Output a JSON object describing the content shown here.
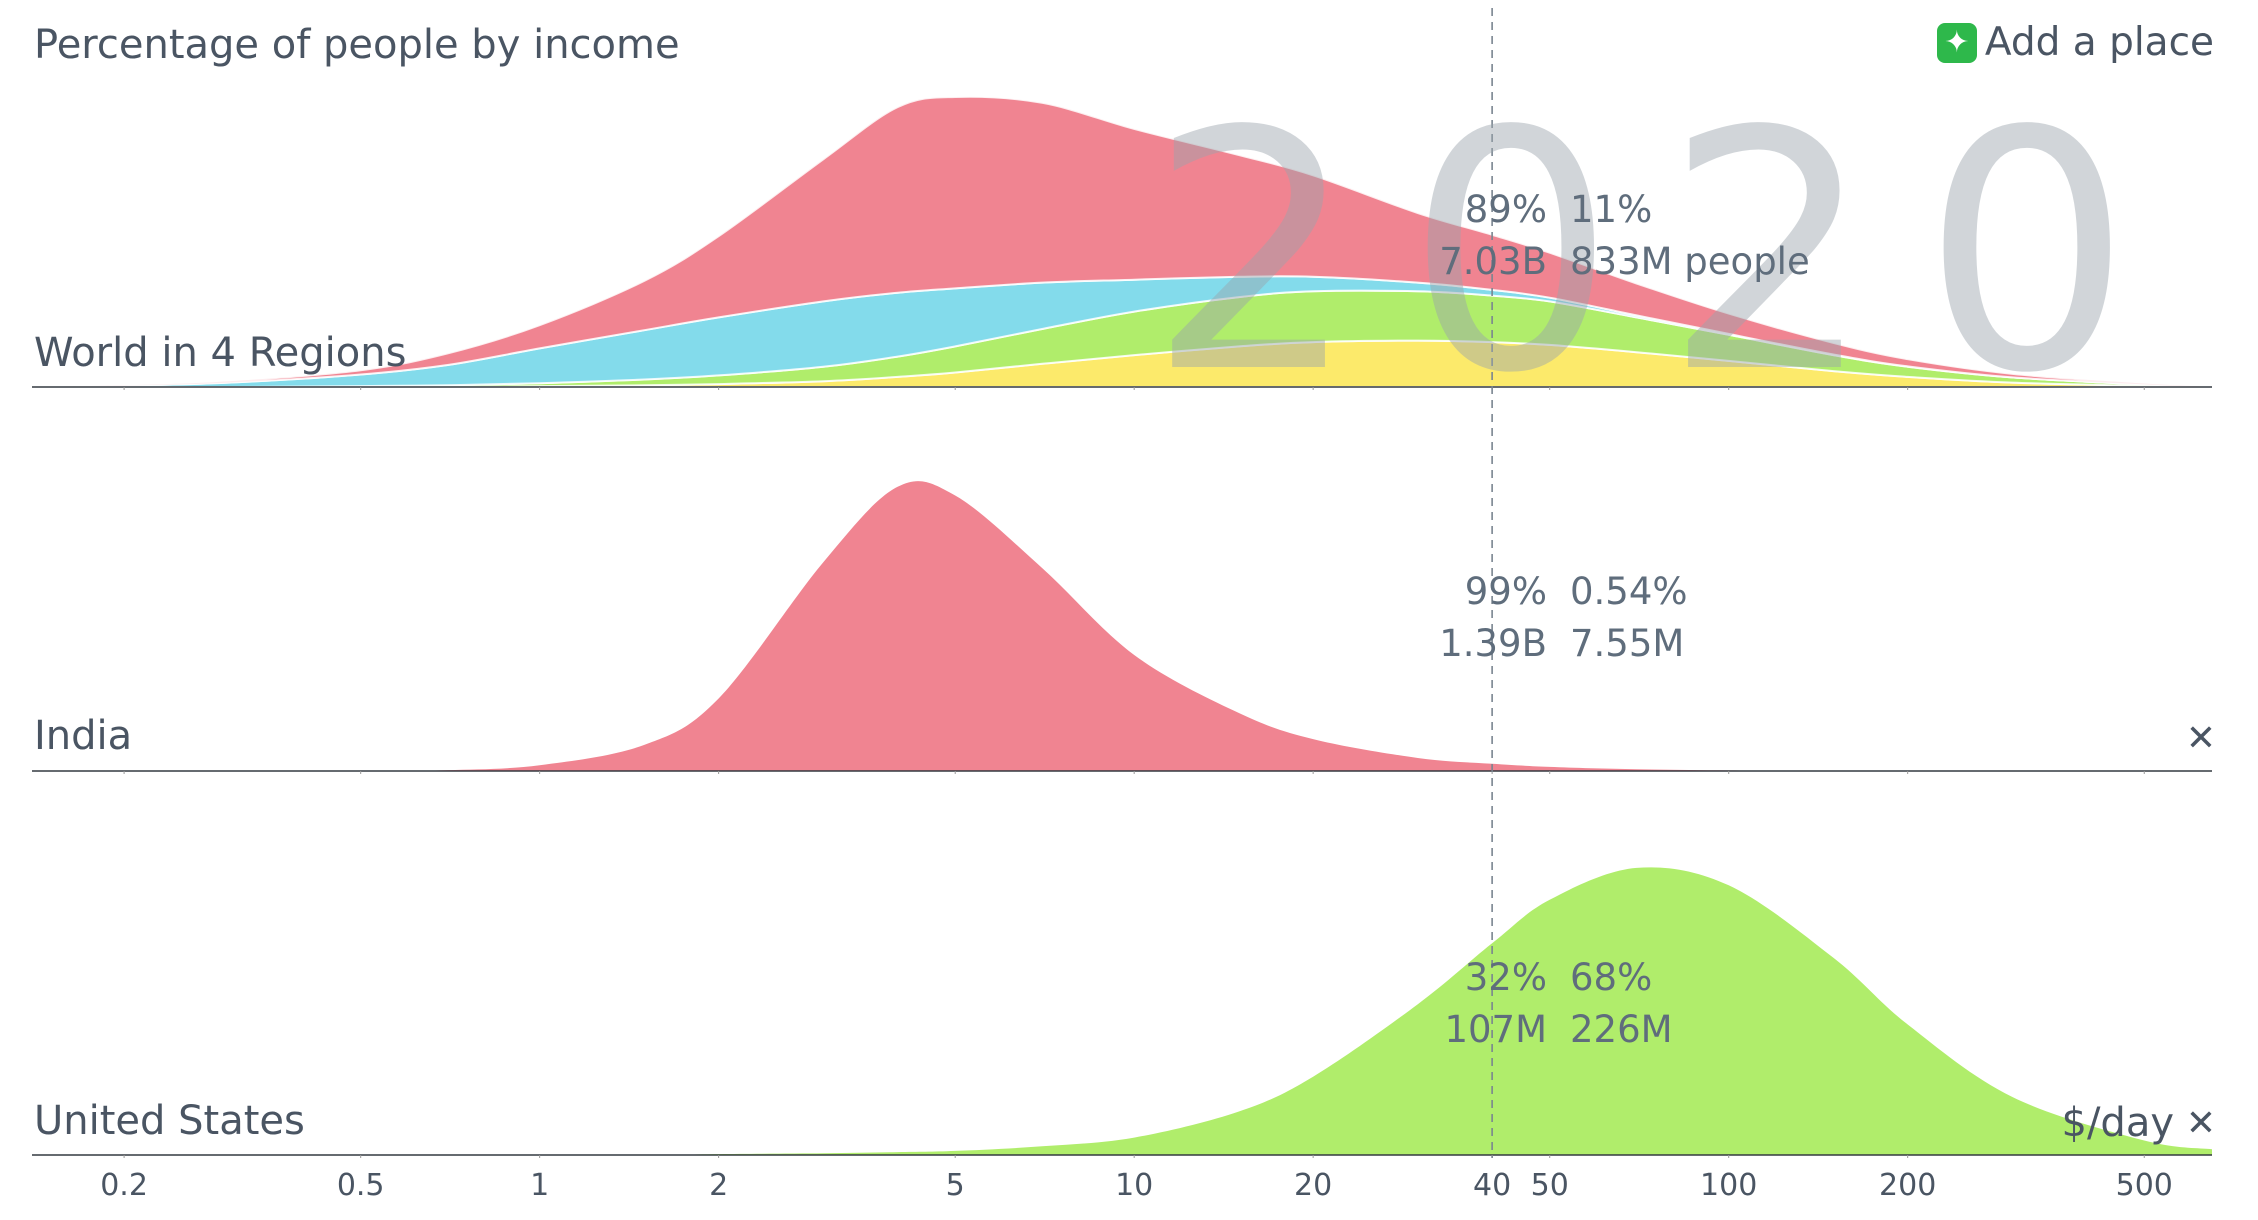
{
  "header": {
    "title": "Percentage of people by income",
    "add_place_label": "Add a place",
    "add_place_icon": "sparkle-icon"
  },
  "year_label": "2020",
  "unit_label": "$/day",
  "threshold": 40,
  "x_ticks": [
    {
      "value": 0.2,
      "label": "0.2"
    },
    {
      "value": 0.5,
      "label": "0.5"
    },
    {
      "value": 1,
      "label": "1"
    },
    {
      "value": 2,
      "label": "2"
    },
    {
      "value": 5,
      "label": "5"
    },
    {
      "value": 10,
      "label": "10"
    },
    {
      "value": 20,
      "label": "20"
    },
    {
      "value": 40,
      "label": "40"
    },
    {
      "value": 50,
      "label": "50"
    },
    {
      "value": 100,
      "label": "100"
    },
    {
      "value": 200,
      "label": "200"
    },
    {
      "value": 500,
      "label": "500"
    }
  ],
  "colors": {
    "red": "#f08491",
    "blue": "#83dbeb",
    "green": "#b0ed6b",
    "yellow": "#fcea6b",
    "text": "#4a5563"
  },
  "panels": [
    {
      "label": "World in 4 Regions",
      "closable": false,
      "stats": {
        "below_pct": "89%",
        "above_pct": "11%",
        "below_count": "7.03B",
        "above_count": "833M people"
      }
    },
    {
      "label": "India",
      "closable": true,
      "stats": {
        "below_pct": "99%",
        "above_pct": "0.54%",
        "below_count": "1.39B",
        "above_count": "7.55M"
      }
    },
    {
      "label": "United States",
      "closable": true,
      "stats": {
        "below_pct": "32%",
        "above_pct": "68%",
        "below_count": "107M",
        "above_count": "226M"
      }
    }
  ],
  "chart_data": {
    "type": "area",
    "title": "Percentage of people by income",
    "xlabel": "$/day",
    "x_scale": "log",
    "xlim": [
      0.14,
      650
    ],
    "ylim": [
      0,
      1
    ],
    "x": [
      0.14,
      0.2,
      0.3,
      0.5,
      0.7,
      1,
      1.5,
      2,
      3,
      4,
      5,
      7,
      10,
      15,
      20,
      30,
      40,
      50,
      70,
      100,
      150,
      200,
      300,
      500,
      650
    ],
    "panels": [
      {
        "name": "World in 4 Regions",
        "stacked": true,
        "series": [
          {
            "color": "#fcea6b",
            "values": [
              0,
              0,
              0,
              0,
              0,
              0.003,
              0.006,
              0.01,
              0.02,
              0.035,
              0.05,
              0.08,
              0.11,
              0.14,
              0.155,
              0.16,
              0.155,
              0.145,
              0.12,
              0.09,
              0.055,
              0.035,
              0.015,
              0.004,
              0
            ]
          },
          {
            "color": "#b0ed6b",
            "values": [
              0,
              0,
              0,
              0.003,
              0.006,
              0.01,
              0.02,
              0.03,
              0.05,
              0.07,
              0.09,
              0.12,
              0.15,
              0.17,
              0.175,
              0.17,
              0.16,
              0.15,
              0.12,
              0.09,
              0.055,
              0.035,
              0.018,
              0.005,
              0
            ]
          },
          {
            "color": "#83dbeb",
            "values": [
              0,
              0.005,
              0.015,
              0.04,
              0.07,
              0.12,
              0.17,
              0.2,
              0.225,
              0.22,
              0.2,
              0.16,
              0.11,
              0.07,
              0.05,
              0.03,
              0.02,
              0.013,
              0.007,
              0.003,
              0.002,
              0.001,
              0,
              0,
              0
            ]
          },
          {
            "color": "#f08491",
            "values": [
              0,
              0.001,
              0.005,
              0.015,
              0.04,
              0.08,
              0.17,
              0.28,
              0.49,
              0.64,
              0.66,
              0.62,
              0.52,
              0.42,
              0.35,
              0.24,
              0.19,
              0.155,
              0.11,
              0.07,
              0.04,
              0.025,
              0.012,
              0.003,
              0
            ]
          }
        ]
      },
      {
        "name": "India",
        "stacked": false,
        "series": [
          {
            "color": "#f08491",
            "values": [
              0,
              0,
              0,
              0,
              0.003,
              0.02,
              0.09,
              0.25,
              0.72,
              0.98,
              0.95,
              0.7,
              0.4,
              0.2,
              0.11,
              0.045,
              0.025,
              0.014,
              0.006,
              0.002,
              0.001,
              0,
              0,
              0,
              0
            ]
          }
        ]
      },
      {
        "name": "United States",
        "stacked": false,
        "series": [
          {
            "color": "#b0ed6b",
            "values": [
              0,
              0,
              0,
              0,
              0,
              0,
              0,
              0.003,
              0.006,
              0.01,
              0.014,
              0.03,
              0.06,
              0.15,
              0.27,
              0.52,
              0.73,
              0.88,
              0.99,
              0.93,
              0.68,
              0.45,
              0.2,
              0.05,
              0.02
            ]
          }
        ]
      }
    ]
  }
}
